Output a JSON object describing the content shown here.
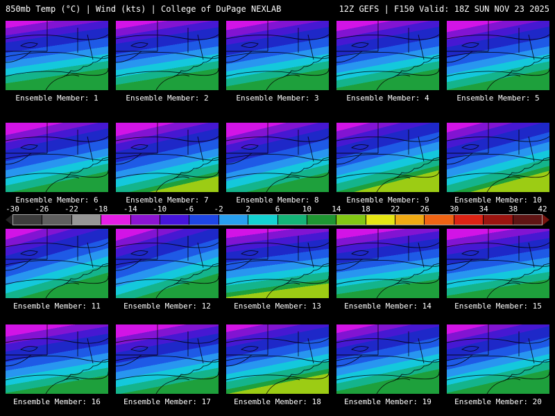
{
  "header": {
    "left": "850mb Temp (°C) | Wind (kts) | College of DuPage NEXLAB",
    "right": "12Z GEFS | F150 Valid: 18Z SUN NOV 23 2025"
  },
  "ensemble": {
    "members": [
      {
        "label": "Ensemble Member: 1"
      },
      {
        "label": "Ensemble Member: 2"
      },
      {
        "label": "Ensemble Member: 3"
      },
      {
        "label": "Ensemble Member: 4"
      },
      {
        "label": "Ensemble Member: 5"
      },
      {
        "label": "Ensemble Member: 6"
      },
      {
        "label": "Ensemble Member: 7"
      },
      {
        "label": "Ensemble Member: 8"
      },
      {
        "label": "Ensemble Member: 9"
      },
      {
        "label": "Ensemble Member: 10"
      },
      {
        "label": "Ensemble Member: 11"
      },
      {
        "label": "Ensemble Member: 12"
      },
      {
        "label": "Ensemble Member: 13"
      },
      {
        "label": "Ensemble Member: 14"
      },
      {
        "label": "Ensemble Member: 15"
      },
      {
        "label": "Ensemble Member: 16"
      },
      {
        "label": "Ensemble Member: 17"
      },
      {
        "label": "Ensemble Member: 18"
      },
      {
        "label": "Ensemble Member: 19"
      },
      {
        "label": "Ensemble Member: 20"
      }
    ]
  },
  "colorbar": {
    "ticks": [
      "-30",
      "-26",
      "-22",
      "-18",
      "-14",
      "-10",
      "-6",
      "-2",
      "2",
      "6",
      "10",
      "14",
      "18",
      "22",
      "26",
      "30",
      "34",
      "38",
      "42"
    ],
    "segment_colors": [
      "#3c3c3c",
      "#5f5f5f",
      "#969696",
      "#e61ee6",
      "#8c14d2",
      "#4614dc",
      "#1e46e6",
      "#28a0f0",
      "#14d2d2",
      "#14b478",
      "#1e9632",
      "#82c814",
      "#e6e614",
      "#f0aa14",
      "#f06414",
      "#dc2314",
      "#9b1410",
      "#5f1414"
    ],
    "left_arrow_color": "#232323",
    "right_arrow_color": "#78140f"
  },
  "map": {
    "bands": [
      {
        "color": "#d214e6",
        "to": 0.1
      },
      {
        "color": "#8214d2",
        "to": 0.2
      },
      {
        "color": "#4618d2",
        "to": 0.3
      },
      {
        "color": "#1e28c8",
        "to": 0.44
      },
      {
        "color": "#1e5ae6",
        "to": 0.56
      },
      {
        "color": "#2896f0",
        "to": 0.66
      },
      {
        "color": "#14c8dc",
        "to": 0.76
      },
      {
        "color": "#14b48c",
        "to": 0.86
      },
      {
        "color": "#1ea03c",
        "to": 1
      }
    ],
    "warm_color": "#9ccc14",
    "warm_members": [
      7,
      9,
      10,
      13,
      18
    ]
  }
}
